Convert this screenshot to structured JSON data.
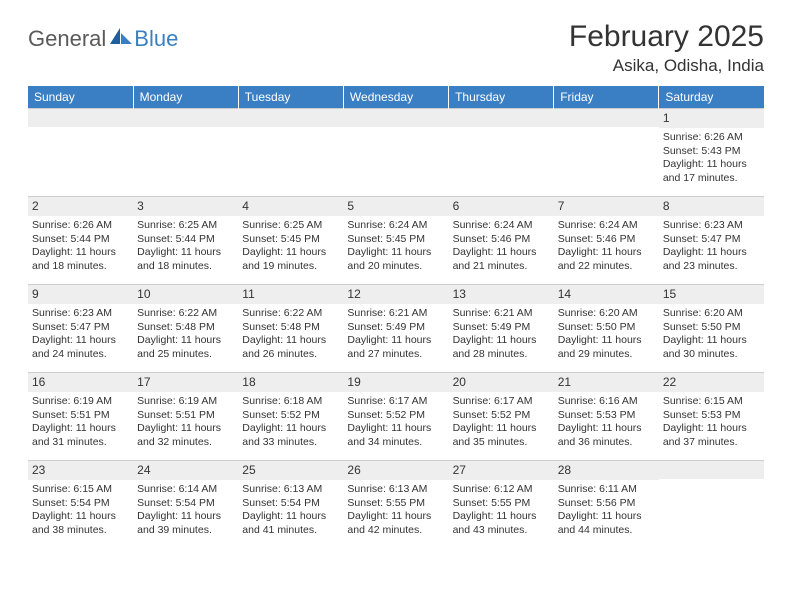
{
  "logo": {
    "text1": "General",
    "text2": "Blue"
  },
  "title": "February 2025",
  "location": "Asika, Odisha, India",
  "dayHeaders": [
    "Sunday",
    "Monday",
    "Tuesday",
    "Wednesday",
    "Thursday",
    "Friday",
    "Saturday"
  ],
  "labels": {
    "sunrise": "Sunrise:",
    "sunset": "Sunset:",
    "daylight": "Daylight:"
  },
  "colors": {
    "header_bg": "#3a7fc4",
    "daynum_bg": "#eeeeee",
    "text": "#333333",
    "logo_blue": "#3a7fc4",
    "logo_gray": "#5a5a5a"
  },
  "weeks": [
    [
      null,
      null,
      null,
      null,
      null,
      null,
      {
        "n": "1",
        "sunrise": "6:26 AM",
        "sunset": "5:43 PM",
        "dl1": "11 hours",
        "dl2": "and 17 minutes."
      }
    ],
    [
      {
        "n": "2",
        "sunrise": "6:26 AM",
        "sunset": "5:44 PM",
        "dl1": "11 hours",
        "dl2": "and 18 minutes."
      },
      {
        "n": "3",
        "sunrise": "6:25 AM",
        "sunset": "5:44 PM",
        "dl1": "11 hours",
        "dl2": "and 18 minutes."
      },
      {
        "n": "4",
        "sunrise": "6:25 AM",
        "sunset": "5:45 PM",
        "dl1": "11 hours",
        "dl2": "and 19 minutes."
      },
      {
        "n": "5",
        "sunrise": "6:24 AM",
        "sunset": "5:45 PM",
        "dl1": "11 hours",
        "dl2": "and 20 minutes."
      },
      {
        "n": "6",
        "sunrise": "6:24 AM",
        "sunset": "5:46 PM",
        "dl1": "11 hours",
        "dl2": "and 21 minutes."
      },
      {
        "n": "7",
        "sunrise": "6:24 AM",
        "sunset": "5:46 PM",
        "dl1": "11 hours",
        "dl2": "and 22 minutes."
      },
      {
        "n": "8",
        "sunrise": "6:23 AM",
        "sunset": "5:47 PM",
        "dl1": "11 hours",
        "dl2": "and 23 minutes."
      }
    ],
    [
      {
        "n": "9",
        "sunrise": "6:23 AM",
        "sunset": "5:47 PM",
        "dl1": "11 hours",
        "dl2": "and 24 minutes."
      },
      {
        "n": "10",
        "sunrise": "6:22 AM",
        "sunset": "5:48 PM",
        "dl1": "11 hours",
        "dl2": "and 25 minutes."
      },
      {
        "n": "11",
        "sunrise": "6:22 AM",
        "sunset": "5:48 PM",
        "dl1": "11 hours",
        "dl2": "and 26 minutes."
      },
      {
        "n": "12",
        "sunrise": "6:21 AM",
        "sunset": "5:49 PM",
        "dl1": "11 hours",
        "dl2": "and 27 minutes."
      },
      {
        "n": "13",
        "sunrise": "6:21 AM",
        "sunset": "5:49 PM",
        "dl1": "11 hours",
        "dl2": "and 28 minutes."
      },
      {
        "n": "14",
        "sunrise": "6:20 AM",
        "sunset": "5:50 PM",
        "dl1": "11 hours",
        "dl2": "and 29 minutes."
      },
      {
        "n": "15",
        "sunrise": "6:20 AM",
        "sunset": "5:50 PM",
        "dl1": "11 hours",
        "dl2": "and 30 minutes."
      }
    ],
    [
      {
        "n": "16",
        "sunrise": "6:19 AM",
        "sunset": "5:51 PM",
        "dl1": "11 hours",
        "dl2": "and 31 minutes."
      },
      {
        "n": "17",
        "sunrise": "6:19 AM",
        "sunset": "5:51 PM",
        "dl1": "11 hours",
        "dl2": "and 32 minutes."
      },
      {
        "n": "18",
        "sunrise": "6:18 AM",
        "sunset": "5:52 PM",
        "dl1": "11 hours",
        "dl2": "and 33 minutes."
      },
      {
        "n": "19",
        "sunrise": "6:17 AM",
        "sunset": "5:52 PM",
        "dl1": "11 hours",
        "dl2": "and 34 minutes."
      },
      {
        "n": "20",
        "sunrise": "6:17 AM",
        "sunset": "5:52 PM",
        "dl1": "11 hours",
        "dl2": "and 35 minutes."
      },
      {
        "n": "21",
        "sunrise": "6:16 AM",
        "sunset": "5:53 PM",
        "dl1": "11 hours",
        "dl2": "and 36 minutes."
      },
      {
        "n": "22",
        "sunrise": "6:15 AM",
        "sunset": "5:53 PM",
        "dl1": "11 hours",
        "dl2": "and 37 minutes."
      }
    ],
    [
      {
        "n": "23",
        "sunrise": "6:15 AM",
        "sunset": "5:54 PM",
        "dl1": "11 hours",
        "dl2": "and 38 minutes."
      },
      {
        "n": "24",
        "sunrise": "6:14 AM",
        "sunset": "5:54 PM",
        "dl1": "11 hours",
        "dl2": "and 39 minutes."
      },
      {
        "n": "25",
        "sunrise": "6:13 AM",
        "sunset": "5:54 PM",
        "dl1": "11 hours",
        "dl2": "and 41 minutes."
      },
      {
        "n": "26",
        "sunrise": "6:13 AM",
        "sunset": "5:55 PM",
        "dl1": "11 hours",
        "dl2": "and 42 minutes."
      },
      {
        "n": "27",
        "sunrise": "6:12 AM",
        "sunset": "5:55 PM",
        "dl1": "11 hours",
        "dl2": "and 43 minutes."
      },
      {
        "n": "28",
        "sunrise": "6:11 AM",
        "sunset": "5:56 PM",
        "dl1": "11 hours",
        "dl2": "and 44 minutes."
      },
      null
    ]
  ]
}
